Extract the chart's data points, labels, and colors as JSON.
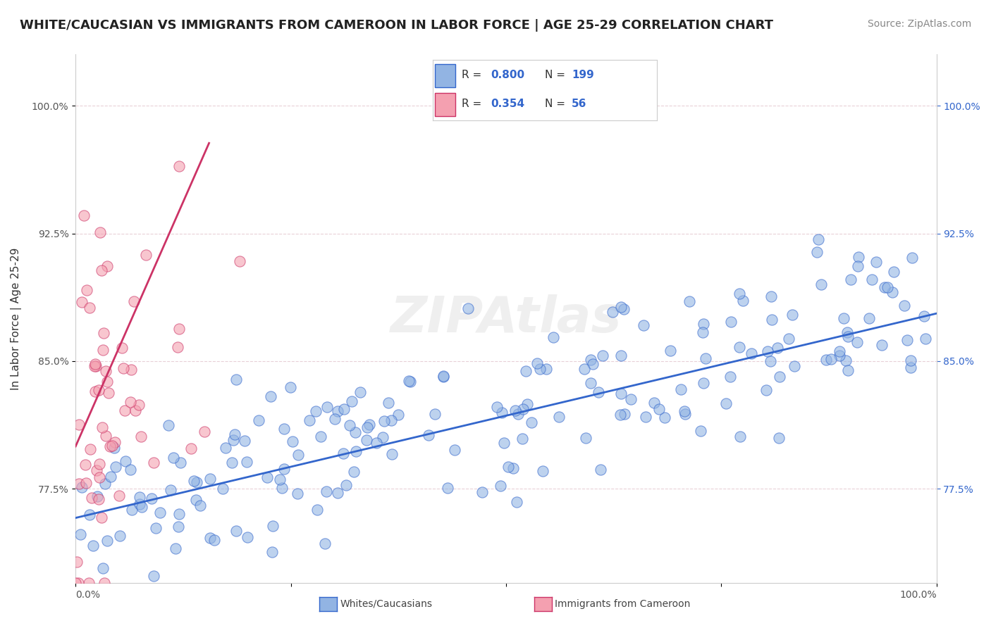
{
  "title": "WHITE/CAUCASIAN VS IMMIGRANTS FROM CAMEROON IN LABOR FORCE | AGE 25-29 CORRELATION CHART",
  "source": "Source: ZipAtlas.com",
  "ylabel": "In Labor Force | Age 25-29",
  "ytick_values": [
    0.775,
    0.85,
    0.925,
    1.0
  ],
  "xlim": [
    0.0,
    1.0
  ],
  "ylim": [
    0.72,
    1.03
  ],
  "blue_R": 0.8,
  "blue_N": 199,
  "pink_R": 0.354,
  "pink_N": 56,
  "blue_color": "#92b4e3",
  "pink_color": "#f4a0b0",
  "blue_line_color": "#3366cc",
  "pink_line_color": "#cc3366",
  "legend_label_blue": "Whites/Caucasians",
  "legend_label_pink": "Immigrants from Cameroon",
  "watermark": "ZIPAtlas",
  "blue_trend_x": [
    0.0,
    1.0
  ],
  "blue_trend_y": [
    0.758,
    0.878
  ],
  "pink_trend_x": [
    0.0,
    0.155
  ],
  "pink_trend_y": [
    0.8,
    0.978
  ]
}
